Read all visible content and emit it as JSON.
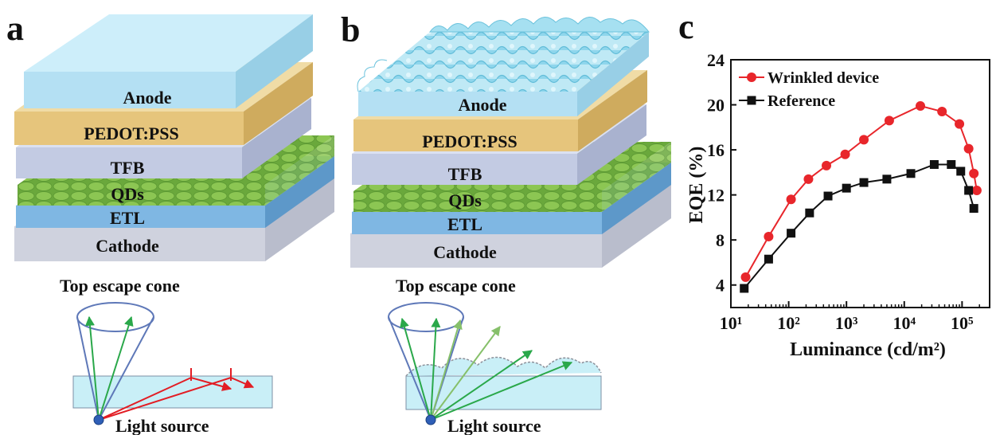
{
  "panels": {
    "a": "a",
    "b": "b",
    "c": "c"
  },
  "stack_labels": {
    "anode": "Anode",
    "pedot": "PEDOT:PSS",
    "tfb": "TFB",
    "qds": "QDs",
    "etl": "ETL",
    "cathode": "Cathode"
  },
  "escape": {
    "cone": "Top escape cone",
    "source": "Light source"
  },
  "colors": {
    "anode": "#c9ecf8",
    "pedot": "#e7c982",
    "tfb": "#c9d2e8",
    "qd": "#86c24a",
    "etl": "#7fb7e3",
    "cathode": "#d3d5e0",
    "wrinkled": "#e8262b",
    "reference": "#111111"
  },
  "chart_data": {
    "type": "line",
    "xlabel": "Luminance (cd/m²)",
    "ylabel": "EQE (%)",
    "xscale": "log",
    "xlim": [
      10,
      300000
    ],
    "ylim": [
      2,
      24
    ],
    "xticks": [
      "10¹",
      "10²",
      "10³",
      "10⁴",
      "10⁵"
    ],
    "xtick_values": [
      10,
      100,
      1000,
      10000,
      100000
    ],
    "yticks": [
      4,
      8,
      12,
      16,
      20,
      24
    ],
    "legend_position": "top-left",
    "series": [
      {
        "name": "Wrinkled device",
        "marker": "circle",
        "x": [
          18,
          45,
          110,
          220,
          450,
          950,
          2000,
          5500,
          19000,
          45000,
          90000,
          130000,
          160000,
          180000
        ],
        "y": [
          4.7,
          8.3,
          11.6,
          13.4,
          14.6,
          15.6,
          16.9,
          18.6,
          19.9,
          19.4,
          18.3,
          16.1,
          13.9,
          12.4
        ]
      },
      {
        "name": "Reference",
        "marker": "square",
        "x": [
          17,
          45,
          110,
          230,
          480,
          1000,
          2000,
          5000,
          13000,
          33000,
          65000,
          95000,
          130000,
          160000
        ],
        "y": [
          3.7,
          6.3,
          8.6,
          10.4,
          11.9,
          12.6,
          13.1,
          13.4,
          13.9,
          14.7,
          14.7,
          14.1,
          12.4,
          10.8
        ]
      }
    ]
  }
}
